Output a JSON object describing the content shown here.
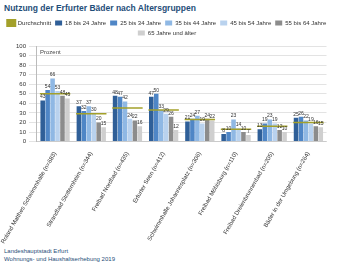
{
  "chart_data": {
    "type": "bar",
    "title": "Nutzung der Erfurter Bäder nach Altersgruppen",
    "ylabel": "Prozent",
    "source": [
      "Landeshauptstadt Erfurt",
      "Wohnungs- und Haushaltserhebung 2019"
    ],
    "categories": [
      "Roland Matthes Schwimmhalle (n=683)",
      "Strandbad Stotternheim (n=344)",
      "Freibad Nordbad (n=435)",
      "Erfurter Seen (n=412)",
      "Schwimmhalle Johannesplatz (n=306)",
      "Freibad Möbisburg (n=110)",
      "Freibad Dreienbrunnenbad (n=205)",
      "Bäder in der Umgebung (n=264)"
    ],
    "series": [
      {
        "name": "18 bis 24 Jahre",
        "color": "#2f5f98",
        "values": [
          43,
          37,
          48,
          47,
          21,
          8,
          13,
          25
        ],
        "data_labels": true
      },
      {
        "name": "25 bis 34 Jahre",
        "color": "#4f86c6",
        "values": [
          54,
          32,
          47,
          50,
          24,
          10,
          19,
          26
        ],
        "data_labels": true
      },
      {
        "name": "35 bis 44 Jahre",
        "color": "#8fb8e4",
        "values": [
          66,
          37,
          42,
          33,
          27,
          23,
          23,
          22
        ],
        "data_labels": true
      },
      {
        "name": "45 bis 54 Jahre",
        "color": "#b9d2ee",
        "values": [
          53,
          30,
          24,
          29,
          19,
          14,
          19,
          19
        ],
        "data_labels": true
      },
      {
        "name": "55 bis 64 Jahre",
        "color": "#8c8c8c",
        "values": [
          48,
          20,
          22,
          26,
          24,
          10,
          12,
          16
        ],
        "data_labels": true
      },
      {
        "name": "65 Jahre und älter",
        "color": "#cfcfcf",
        "values": [
          45,
          15,
          16,
          12,
          22,
          7,
          10,
          15
        ],
        "data_labels": true
      },
      {
        "name": "Durchschnitt",
        "type": "line",
        "marker": "line",
        "line_style": "none",
        "color": "#a3a02a",
        "values": [
          50,
          29,
          35,
          33,
          23,
          13,
          16,
          20
        ],
        "data_labels": false
      }
    ],
    "ylim": [
      0,
      100
    ],
    "yticks": [
      0,
      10,
      20,
      30,
      40,
      50,
      60,
      70,
      80,
      90,
      100
    ],
    "grid": true,
    "legend": "top"
  }
}
